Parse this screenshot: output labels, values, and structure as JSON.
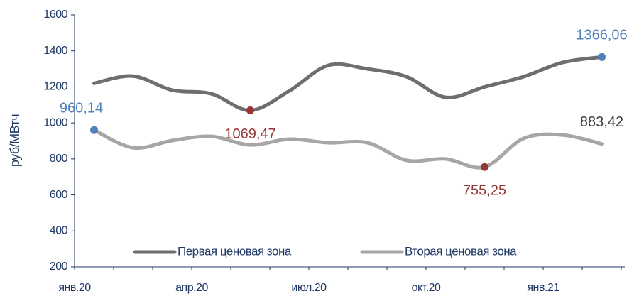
{
  "chart_data": {
    "type": "line",
    "ylabel": "руб/МВтч",
    "categories": [
      "янв.20",
      null,
      null,
      "апр.20",
      null,
      null,
      "июл.20",
      null,
      null,
      "окт.20",
      null,
      null,
      "янв.21",
      null
    ],
    "ylim": [
      200,
      1600
    ],
    "yticks": [
      200,
      400,
      600,
      800,
      1000,
      1200,
      1400,
      1600
    ],
    "grid": false,
    "legend": "bottom",
    "series": [
      {
        "name": "Первая ценовая зона",
        "color": "#6e6e6e",
        "values": [
          1220,
          1260,
          1182,
          1162,
          1069.47,
          1178,
          1320,
          1300,
          1257,
          1142,
          1200,
          1257,
          1336,
          1366.06
        ],
        "value_labels": [
          null,
          null,
          null,
          null,
          "1069,47",
          null,
          null,
          null,
          null,
          null,
          null,
          null,
          null,
          "1366,06"
        ],
        "label_colors": [
          null,
          null,
          null,
          null,
          "#953735",
          null,
          null,
          null,
          null,
          null,
          null,
          null,
          null,
          "#4f81bd"
        ],
        "marker_colors": [
          null,
          null,
          null,
          null,
          "#953735",
          null,
          null,
          null,
          null,
          null,
          null,
          null,
          null,
          "#4f81bd"
        ]
      },
      {
        "name": "Вторая ценовая зона",
        "color": "#a6a6a6",
        "values": [
          960.14,
          862,
          902,
          925,
          878,
          910,
          890,
          890,
          792,
          800,
          755.25,
          914,
          933,
          883.42
        ],
        "value_labels": [
          "960,14",
          null,
          null,
          null,
          null,
          null,
          null,
          null,
          null,
          null,
          "755,25",
          null,
          null,
          "883,42"
        ],
        "label_colors": [
          "#4f81bd",
          null,
          null,
          null,
          null,
          null,
          null,
          null,
          null,
          null,
          "#953735",
          null,
          null,
          "#404040"
        ],
        "marker_colors": [
          "#4f81bd",
          null,
          null,
          null,
          null,
          null,
          null,
          null,
          null,
          null,
          "#953735",
          null,
          null,
          null
        ]
      }
    ]
  }
}
